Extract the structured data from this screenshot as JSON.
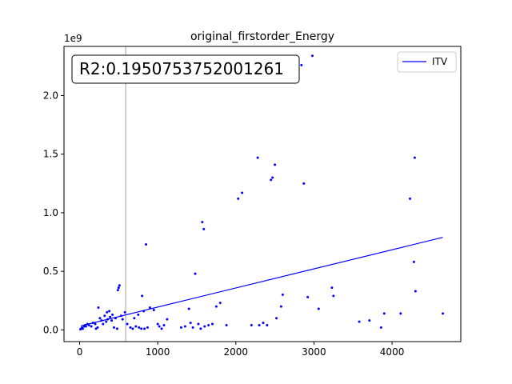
{
  "chart_data": {
    "type": "scatter",
    "title": "original_firstorder_Energy",
    "xlabel": "",
    "ylabel": "",
    "y_offset_label": "1e9",
    "xlim": [
      -200,
      4880
    ],
    "ylim": [
      -0.1,
      2.42
    ],
    "x_ticks": [
      0,
      1000,
      2000,
      3000,
      4000
    ],
    "x_tick_labels": [
      "0",
      "1000",
      "2000",
      "3000",
      "4000"
    ],
    "y_ticks": [
      0.0,
      0.5,
      1.0,
      1.5,
      2.0
    ],
    "y_tick_labels": [
      "0.0",
      "0.5",
      "1.0",
      "1.5",
      "2.0"
    ],
    "grid": false,
    "legend": {
      "placement": "top-right",
      "entries": [
        "ITV"
      ]
    },
    "annotation": "R2:0.1950753752001261",
    "vline_x": 590,
    "point_color": "#0000ff",
    "vline_color": "#bfbfbf",
    "fit_line": {
      "name": "ITV",
      "x": [
        20,
        4650
      ],
      "y": [
        0.035,
        0.79
      ],
      "color": "#0000ff"
    },
    "points": [
      [
        10,
        0.005
      ],
      [
        20,
        0.01
      ],
      [
        30,
        0.02
      ],
      [
        40,
        0.01
      ],
      [
        60,
        0.03
      ],
      [
        70,
        0.04
      ],
      [
        80,
        0.03
      ],
      [
        100,
        0.05
      ],
      [
        120,
        0.04
      ],
      [
        150,
        0.03
      ],
      [
        170,
        0.06
      ],
      [
        200,
        0.05
      ],
      [
        210,
        0.01
      ],
      [
        230,
        0.02
      ],
      [
        240,
        0.19
      ],
      [
        260,
        0.1
      ],
      [
        280,
        0.08
      ],
      [
        300,
        0.05
      ],
      [
        320,
        0.12
      ],
      [
        340,
        0.07
      ],
      [
        350,
        0.15
      ],
      [
        360,
        0.09
      ],
      [
        380,
        0.16
      ],
      [
        390,
        0.11
      ],
      [
        410,
        0.08
      ],
      [
        420,
        0.13
      ],
      [
        440,
        0.02
      ],
      [
        460,
        0.1
      ],
      [
        480,
        0.01
      ],
      [
        490,
        0.34
      ],
      [
        500,
        0.36
      ],
      [
        510,
        0.38
      ],
      [
        530,
        0.12
      ],
      [
        550,
        0.09
      ],
      [
        580,
        0.15
      ],
      [
        610,
        0.05
      ],
      [
        650,
        0.02
      ],
      [
        680,
        0.01
      ],
      [
        700,
        0.1
      ],
      [
        720,
        0.03
      ],
      [
        750,
        0.13
      ],
      [
        760,
        0.02
      ],
      [
        790,
        0.01
      ],
      [
        800,
        0.29
      ],
      [
        820,
        0.16
      ],
      [
        830,
        0.01
      ],
      [
        850,
        0.73
      ],
      [
        870,
        0.02
      ],
      [
        900,
        0.19
      ],
      [
        950,
        0.17
      ],
      [
        1000,
        0.05
      ],
      [
        1020,
        0.03
      ],
      [
        1050,
        0.01
      ],
      [
        1080,
        0.04
      ],
      [
        1120,
        0.09
      ],
      [
        1300,
        0.02
      ],
      [
        1350,
        0.03
      ],
      [
        1400,
        0.18
      ],
      [
        1420,
        0.06
      ],
      [
        1450,
        0.02
      ],
      [
        1480,
        0.48
      ],
      [
        1520,
        0.05
      ],
      [
        1550,
        0.01
      ],
      [
        1570,
        0.92
      ],
      [
        1590,
        0.86
      ],
      [
        1600,
        0.03
      ],
      [
        1650,
        0.04
      ],
      [
        1700,
        0.05
      ],
      [
        1750,
        0.2
      ],
      [
        1800,
        0.23
      ],
      [
        1880,
        0.04
      ],
      [
        2030,
        1.12
      ],
      [
        2080,
        1.17
      ],
      [
        2200,
        0.04
      ],
      [
        2280,
        1.47
      ],
      [
        2300,
        0.04
      ],
      [
        2350,
        0.06
      ],
      [
        2400,
        0.04
      ],
      [
        2450,
        1.28
      ],
      [
        2470,
        1.3
      ],
      [
        2500,
        1.41
      ],
      [
        2520,
        0.1
      ],
      [
        2580,
        0.2
      ],
      [
        2600,
        0.3
      ],
      [
        2840,
        2.26
      ],
      [
        2870,
        1.25
      ],
      [
        2920,
        0.28
      ],
      [
        2980,
        2.34
      ],
      [
        3060,
        0.18
      ],
      [
        3230,
        0.36
      ],
      [
        3250,
        0.29
      ],
      [
        3580,
        0.07
      ],
      [
        3710,
        0.08
      ],
      [
        3860,
        0.02
      ],
      [
        3900,
        0.14
      ],
      [
        4110,
        0.14
      ],
      [
        4230,
        1.12
      ],
      [
        4280,
        0.58
      ],
      [
        4290,
        1.47
      ],
      [
        4300,
        0.33
      ],
      [
        4650,
        0.14
      ]
    ]
  }
}
